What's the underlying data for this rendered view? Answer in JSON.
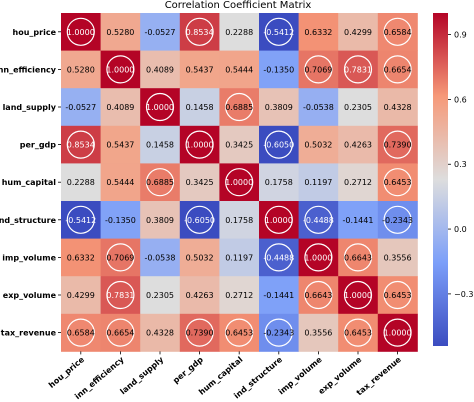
{
  "chart_data": {
    "type": "heatmap",
    "title": "Correlation Coefficient Matrix",
    "labels": [
      "hou_price",
      "inn_efficiency",
      "land_supply",
      "per_gdp",
      "hum_capital",
      "ind_structure",
      "imp_volume",
      "exp_volume",
      "tax_revenue"
    ],
    "values": [
      [
        "1.0000",
        "0.5280",
        "-0.0527",
        "0.8534",
        "0.2288",
        "-0.5412",
        "0.6332",
        "0.4299",
        "0.6584"
      ],
      [
        "0.5280",
        "1.0000",
        "0.4089",
        "0.5437",
        "0.5444",
        "-0.1350",
        "0.7069",
        "0.7831",
        "0.6654"
      ],
      [
        "-0.0527",
        "0.4089",
        "1.0000",
        "0.1458",
        "0.6885",
        "0.3809",
        "-0.0538",
        "0.2305",
        "0.4328"
      ],
      [
        "0.8534",
        "0.5437",
        "0.1458",
        "1.0000",
        "0.3425",
        "-0.6050",
        "0.5032",
        "0.4263",
        "0.7390"
      ],
      [
        "0.2288",
        "0.5444",
        "0.6885",
        "0.3425",
        "1.0000",
        "0.1758",
        "0.1197",
        "0.2712",
        "0.6453"
      ],
      [
        "-0.5412",
        "-0.1350",
        "0.3809",
        "-0.6050",
        "0.1758",
        "1.0000",
        "-0.4488",
        "-0.1441",
        "-0.2343"
      ],
      [
        "0.6332",
        "0.7069",
        "-0.0538",
        "0.5032",
        "0.1197",
        "-0.4488",
        "1.0000",
        "0.6643",
        "0.3556"
      ],
      [
        "0.4299",
        "0.7831",
        "0.2305",
        "0.4263",
        "0.2712",
        "-0.1441",
        "0.6643",
        "1.0000",
        "0.6453"
      ],
      [
        "0.6584",
        "0.6654",
        "0.4328",
        "0.7390",
        "0.6453",
        "-0.2343",
        "0.3556",
        "0.6453",
        "1.0000"
      ]
    ],
    "highlighted": [
      [
        0,
        0
      ],
      [
        0,
        3
      ],
      [
        0,
        5
      ],
      [
        0,
        8
      ],
      [
        1,
        1
      ],
      [
        1,
        6
      ],
      [
        1,
        7
      ],
      [
        1,
        8
      ],
      [
        2,
        2
      ],
      [
        2,
        4
      ],
      [
        3,
        0
      ],
      [
        3,
        3
      ],
      [
        3,
        5
      ],
      [
        3,
        8
      ],
      [
        4,
        2
      ],
      [
        4,
        4
      ],
      [
        4,
        8
      ],
      [
        5,
        0
      ],
      [
        5,
        3
      ],
      [
        5,
        5
      ],
      [
        5,
        6
      ],
      [
        5,
        8
      ],
      [
        6,
        1
      ],
      [
        6,
        5
      ],
      [
        6,
        6
      ],
      [
        6,
        7
      ],
      [
        7,
        1
      ],
      [
        7,
        6
      ],
      [
        7,
        7
      ],
      [
        7,
        8
      ],
      [
        8,
        0
      ],
      [
        8,
        1
      ],
      [
        8,
        3
      ],
      [
        8,
        4
      ],
      [
        8,
        5
      ],
      [
        8,
        7
      ],
      [
        8,
        8
      ]
    ],
    "colormap": "coolwarm",
    "vmin": -0.5412,
    "vmax": 1.0,
    "colorbar_ticks": [
      0.9,
      0.6,
      0.3,
      0.0,
      -0.3
    ],
    "colorbar_tick_labels": [
      "0.9",
      "0.6",
      "0.3",
      "0.0",
      "−0.3"
    ],
    "grid": false
  }
}
